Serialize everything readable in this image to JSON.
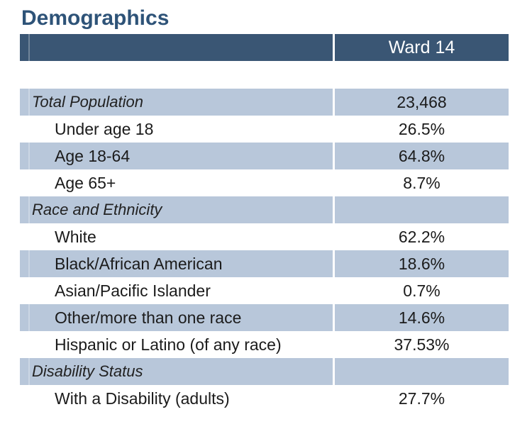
{
  "page": {
    "title": "Demographics"
  },
  "table": {
    "column_header": "Ward 14",
    "rows": [
      {
        "label": "Total Population",
        "value": "23,468",
        "style": "section",
        "shaded": true
      },
      {
        "label": "Under age 18",
        "value": "26.5%",
        "style": "item",
        "shaded": false
      },
      {
        "label": "Age 18-64",
        "value": "64.8%",
        "style": "item",
        "shaded": true
      },
      {
        "label": "Age 65+",
        "value": "8.7%",
        "style": "item",
        "shaded": false
      },
      {
        "label": "Race and Ethnicity",
        "value": "",
        "style": "section",
        "shaded": true
      },
      {
        "label": "White",
        "value": "62.2%",
        "style": "item",
        "shaded": false
      },
      {
        "label": "Black/African American",
        "value": "18.6%",
        "style": "item",
        "shaded": true
      },
      {
        "label": "Asian/Pacific Islander",
        "value": "0.7%",
        "style": "item",
        "shaded": false
      },
      {
        "label": "Other/more than one race",
        "value": "14.6%",
        "style": "item",
        "shaded": true
      },
      {
        "label": "Hispanic or Latino (of any race)",
        "value": "37.53%",
        "style": "item",
        "shaded": false
      },
      {
        "label": "Disability Status",
        "value": "",
        "style": "section",
        "shaded": true
      },
      {
        "label": "With a Disability (adults)",
        "value": "27.7%",
        "style": "item",
        "shaded": false
      }
    ]
  },
  "colors": {
    "header_bg": "#3a5674",
    "shaded_row_bg": "#b8c7da",
    "title_text": "#2e5378",
    "header_text": "#ffffff",
    "body_text": "#1b1b1b"
  }
}
